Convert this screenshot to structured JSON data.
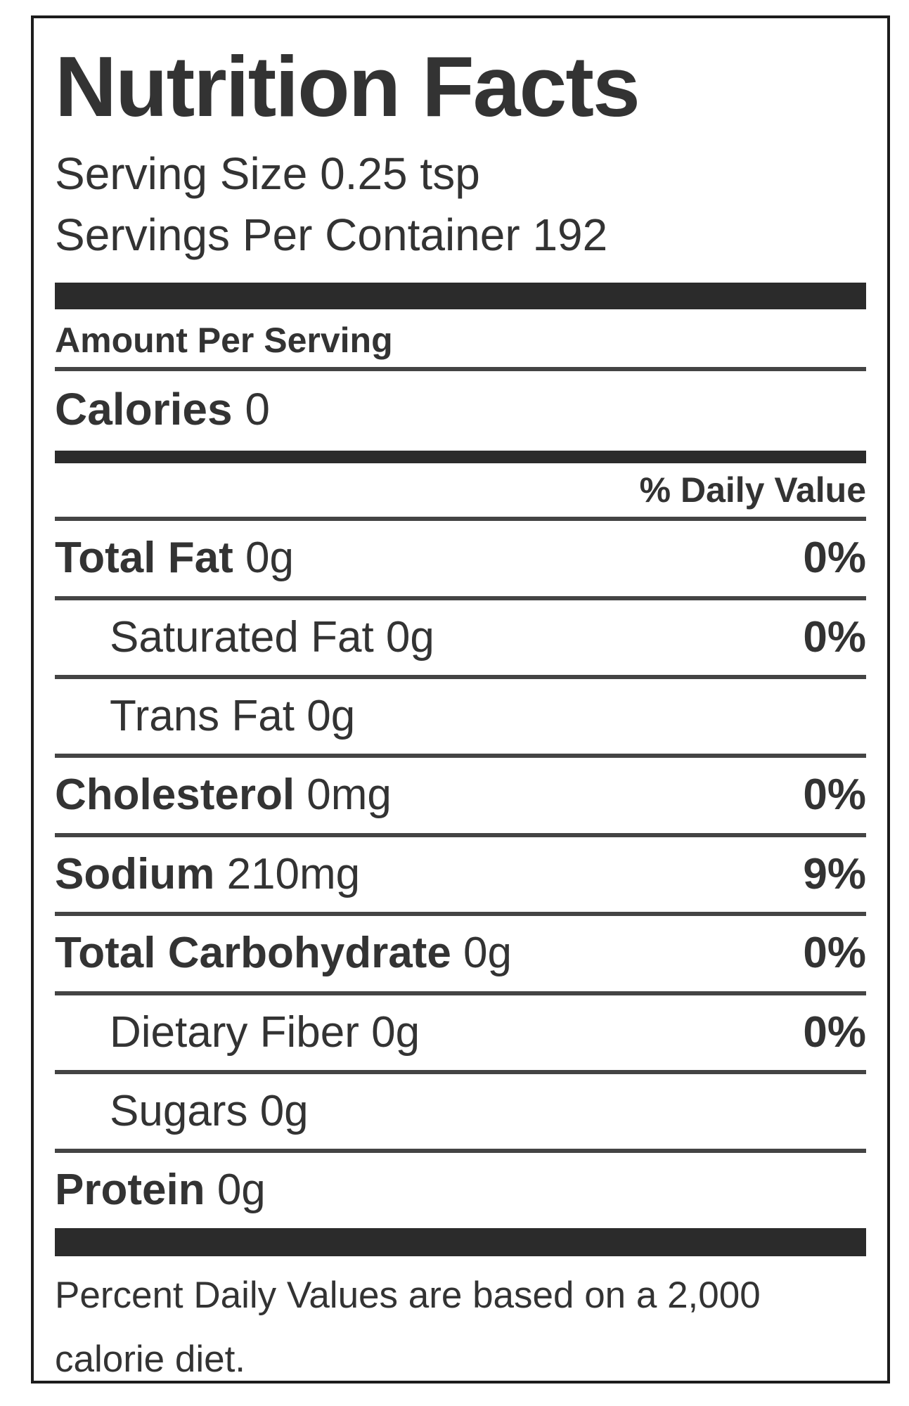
{
  "label": {
    "title": "Nutrition Facts",
    "serving_size": "Serving Size 0.25 tsp",
    "servings_per_container": "Servings Per Container 192",
    "amount_per_serving": "Amount Per Serving",
    "calories": {
      "name": "Calories",
      "value": "0"
    },
    "daily_value_header": "% Daily Value",
    "rows": [
      {
        "name": "Total Fat",
        "amount": "0g",
        "percent": "0%"
      },
      {
        "name": "Saturated Fat",
        "amount": "0g",
        "percent": "0%"
      },
      {
        "name": "Trans Fat",
        "amount": "0g",
        "percent": ""
      },
      {
        "name": "Cholesterol",
        "amount": "0mg",
        "percent": "0%"
      },
      {
        "name": "Sodium",
        "amount": "210mg",
        "percent": "9%"
      },
      {
        "name": "Total Carbohydrate",
        "amount": "0g",
        "percent": "0%"
      },
      {
        "name": "Dietary Fiber",
        "amount": "0g",
        "percent": "0%"
      },
      {
        "name": "Sugars",
        "amount": "0g",
        "percent": ""
      },
      {
        "name": "Protein",
        "amount": "0g",
        "percent": ""
      }
    ],
    "footnote": "Percent Daily Values are based on a 2,000 calorie diet.",
    "colors": {
      "text": "#333333",
      "bar": "#2b2b2b",
      "rule": "#444444",
      "border": "#1c1c1c"
    }
  }
}
